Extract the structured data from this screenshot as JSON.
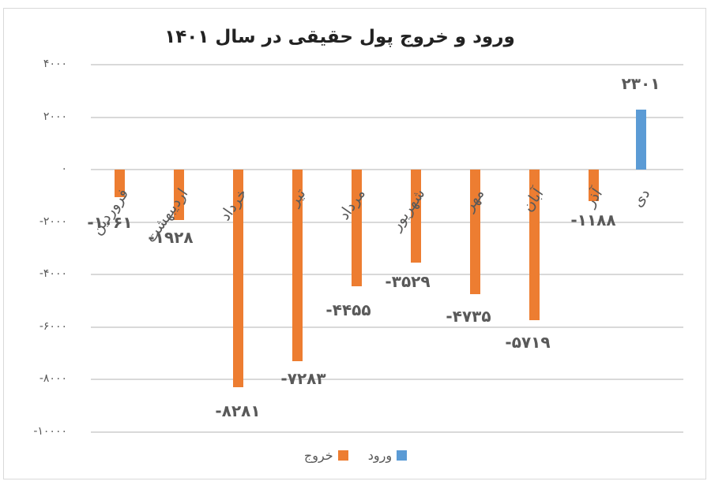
{
  "chart_data": {
    "type": "bar",
    "title": "ورود و خروج پول حقیقی در سال ۱۴۰۱",
    "xlabel": "",
    "ylabel": "",
    "ylim": [
      -10000,
      4000
    ],
    "yticks": [
      4000,
      2000,
      0,
      -2000,
      -4000,
      -6000,
      -8000,
      -10000
    ],
    "ytick_labels": [
      "۴۰۰۰",
      "۲۰۰۰",
      "۰",
      "-۲۰۰۰",
      "-۴۰۰۰",
      "-۶۰۰۰",
      "-۸۰۰۰",
      "-۱۰۰۰۰"
    ],
    "grid": true,
    "legend_position": "bottom",
    "categories": [
      "فروردین",
      "اردیبهشت",
      "خرداد",
      "تیر",
      "مرداد",
      "شهریور",
      "مهر",
      "آبان",
      "آذر",
      "دی"
    ],
    "series": [
      {
        "name": "ورود",
        "color": "#5b9bd5",
        "values": [
          null,
          null,
          null,
          null,
          null,
          null,
          null,
          null,
          null,
          2301
        ]
      },
      {
        "name": "خروج",
        "color": "#ed7d31",
        "values": [
          -1061,
          -1928,
          -8281,
          -7283,
          -4455,
          -3529,
          -4735,
          -5719,
          -1188,
          null
        ]
      }
    ],
    "data_labels": [
      "-۱۰۶۱",
      "-۱۹۲۸",
      "-۸۲۸۱",
      "-۷۲۸۳",
      "-۴۴۵۵",
      "-۳۵۲۹",
      "-۴۷۳۵",
      "-۵۷۱۹",
      "-۱۱۸۸",
      "۲۳۰۱"
    ]
  },
  "legend": {
    "inflow": "ورود",
    "outflow": "خروج"
  }
}
